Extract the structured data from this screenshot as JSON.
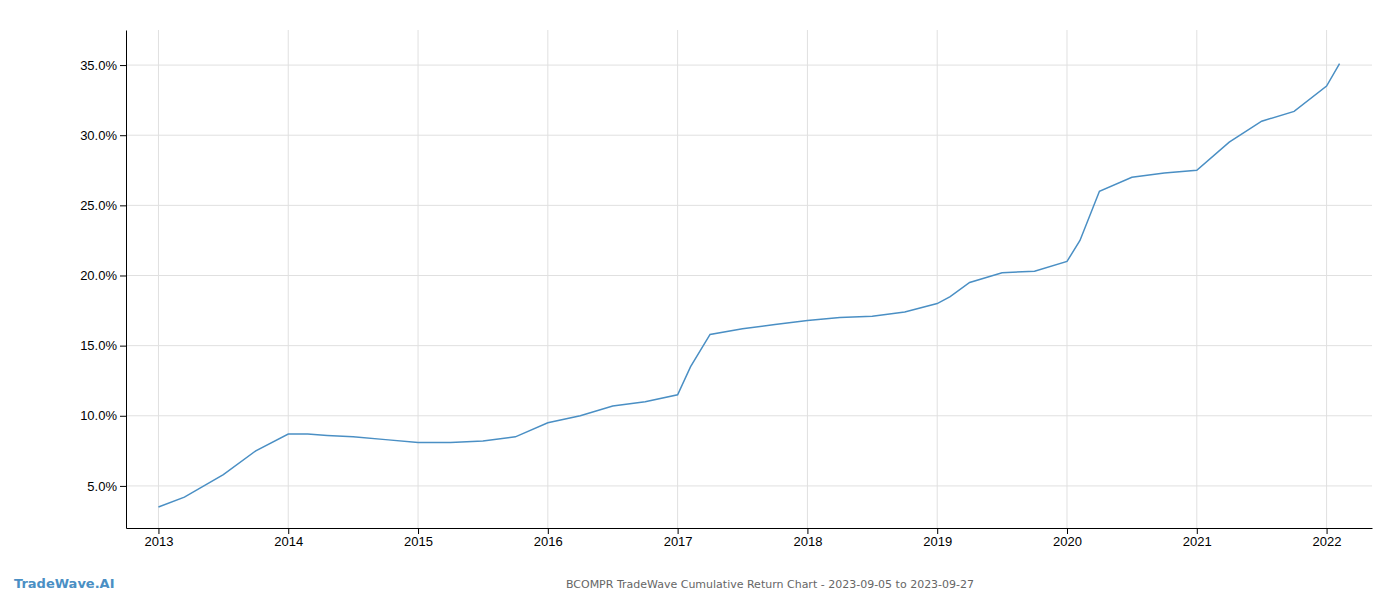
{
  "chart_data": {
    "type": "line",
    "title": "BCOMPR TradeWave Cumulative Return Chart - 2023-09-05 to 2023-09-27",
    "annotations": [
      "TradeWave.AI"
    ],
    "color": "#4a8fc4",
    "x": [
      2013.0,
      2013.2,
      2013.5,
      2013.75,
      2014.0,
      2014.15,
      2014.3,
      2014.5,
      2014.75,
      2015.0,
      2015.25,
      2015.5,
      2015.75,
      2016.0,
      2016.25,
      2016.5,
      2016.75,
      2017.0,
      2017.1,
      2017.25,
      2017.5,
      2017.75,
      2018.0,
      2018.25,
      2018.5,
      2018.75,
      2019.0,
      2019.1,
      2019.25,
      2019.5,
      2019.75,
      2020.0,
      2020.1,
      2020.25,
      2020.5,
      2020.75,
      2021.0,
      2021.25,
      2021.5,
      2021.75,
      2022.0,
      2022.1
    ],
    "values": [
      3.5,
      4.2,
      5.8,
      7.5,
      8.7,
      8.7,
      8.6,
      8.5,
      8.3,
      8.1,
      8.1,
      8.2,
      8.5,
      9.5,
      10.0,
      10.7,
      11.0,
      11.5,
      13.5,
      15.8,
      16.2,
      16.5,
      16.8,
      17.0,
      17.1,
      17.4,
      18.0,
      18.5,
      19.5,
      20.2,
      20.3,
      21.0,
      22.5,
      26.0,
      27.0,
      27.3,
      27.5,
      29.5,
      31.0,
      31.7,
      33.5,
      35.1
    ],
    "xlim": [
      2012.75,
      2022.35
    ],
    "ylim": [
      2.0,
      37.5
    ],
    "xticks": [
      2013,
      2014,
      2015,
      2016,
      2017,
      2018,
      2019,
      2020,
      2021,
      2022
    ],
    "yticks": [
      {
        "value": 5.0,
        "label": "5.0%"
      },
      {
        "value": 10.0,
        "label": "10.0%"
      },
      {
        "value": 15.0,
        "label": "15.0%"
      },
      {
        "value": 20.0,
        "label": "20.0%"
      },
      {
        "value": 25.0,
        "label": "25.0%"
      },
      {
        "value": 30.0,
        "label": "30.0%"
      },
      {
        "value": 35.0,
        "label": "35.0%"
      }
    ],
    "grid": true
  }
}
